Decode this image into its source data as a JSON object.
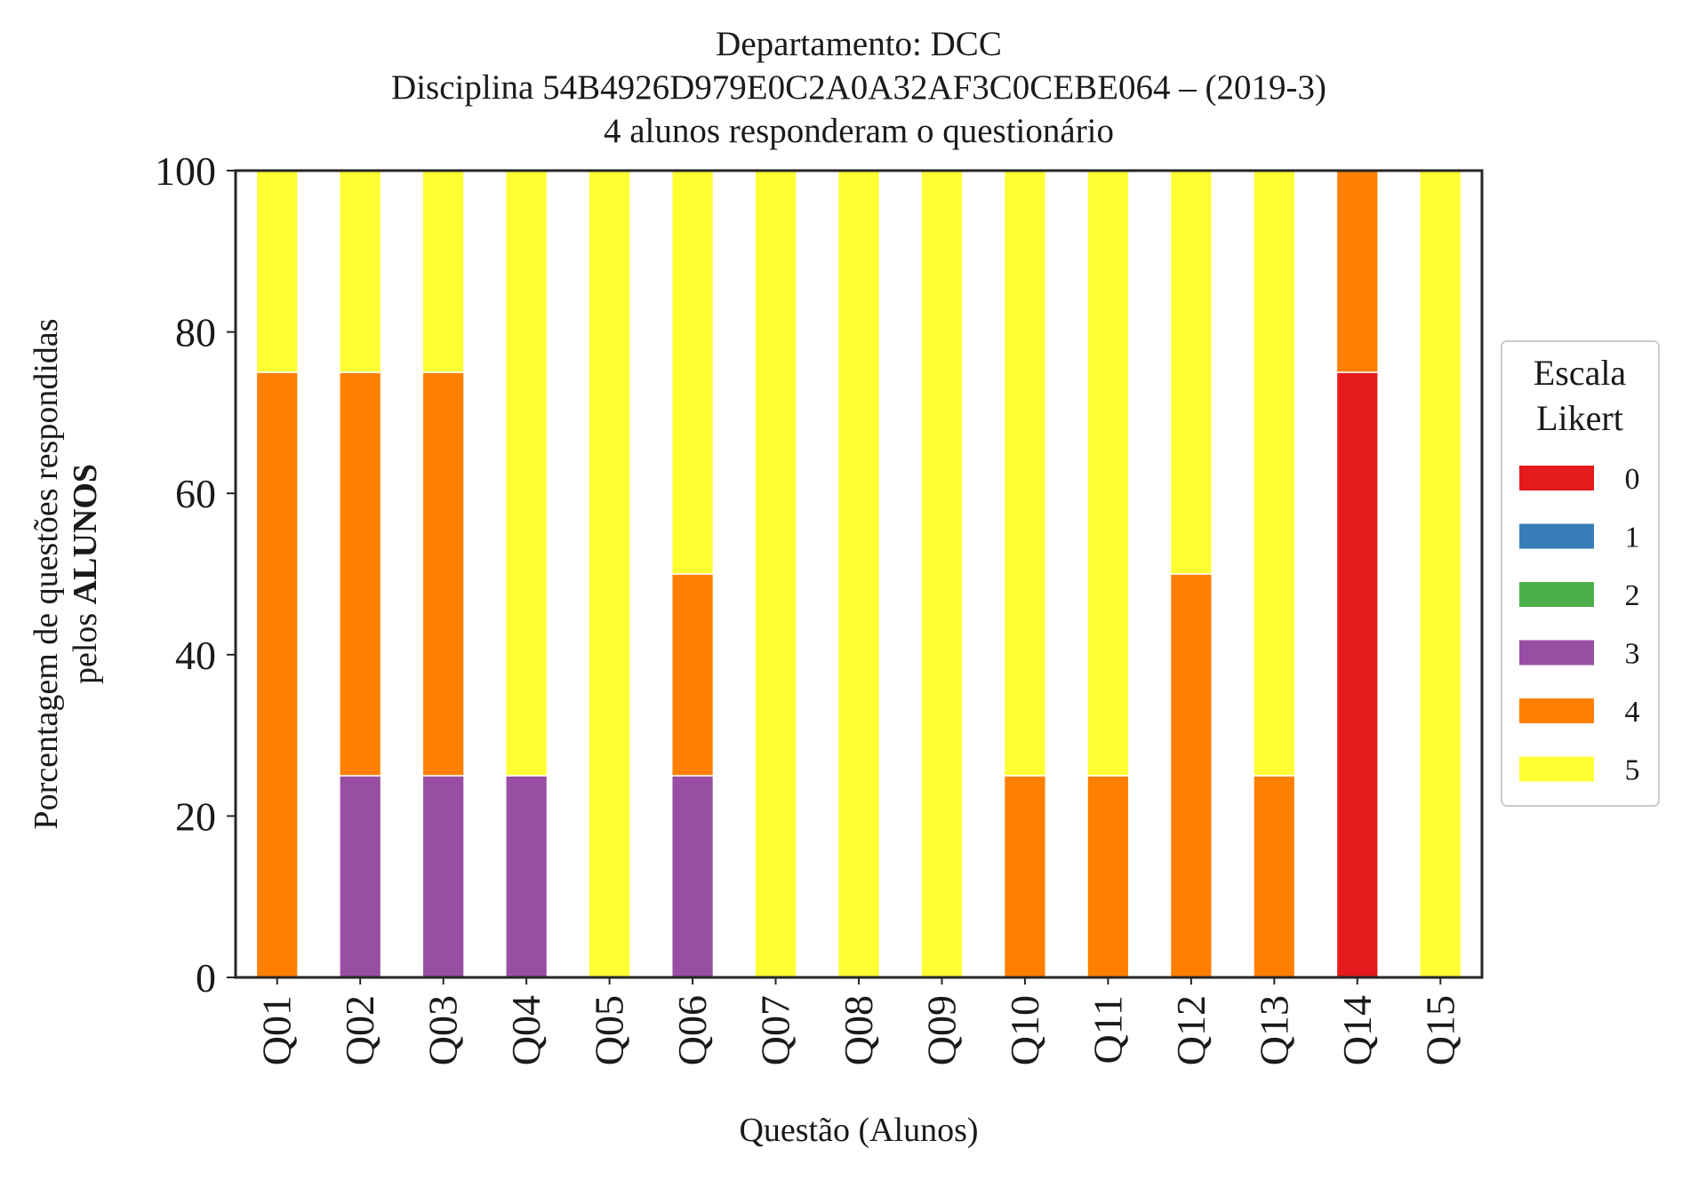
{
  "chart_data": {
    "type": "bar",
    "stacked": true,
    "title_lines": [
      "Departamento: DCC",
      "Disciplina 54B4926D979E0C2A0A32AF3C0CEBE064 – (2019-3)",
      "4 alunos responderam o questionário"
    ],
    "xlabel": "Questão (Alunos)",
    "ylabel_line1": "Porcentagem de questões respondidas",
    "ylabel_line2_prefix": "pelos ",
    "ylabel_line2_bold": "ALUNOS",
    "ylim": [
      0,
      100
    ],
    "yticks": [
      "0",
      "20",
      "40",
      "60",
      "80",
      "100"
    ],
    "grid": false,
    "legend_position": "right",
    "legend_title_lines": [
      "Escala",
      "Likert"
    ],
    "categories": [
      "Q01",
      "Q02",
      "Q03",
      "Q04",
      "Q05",
      "Q06",
      "Q07",
      "Q08",
      "Q09",
      "Q10",
      "Q11",
      "Q12",
      "Q13",
      "Q14",
      "Q15"
    ],
    "series": [
      {
        "name": "0",
        "color": "#e41a1c",
        "values": [
          0,
          0,
          0,
          0,
          0,
          0,
          0,
          0,
          0,
          0,
          0,
          0,
          0,
          75,
          0
        ]
      },
      {
        "name": "1",
        "color": "#377eb8",
        "values": [
          0,
          0,
          0,
          0,
          0,
          0,
          0,
          0,
          0,
          0,
          0,
          0,
          0,
          0,
          0
        ]
      },
      {
        "name": "2",
        "color": "#4daf4a",
        "values": [
          0,
          0,
          0,
          0,
          0,
          0,
          0,
          0,
          0,
          0,
          0,
          0,
          0,
          0,
          0
        ]
      },
      {
        "name": "3",
        "color": "#984ea3",
        "values": [
          0,
          25,
          25,
          25,
          0,
          25,
          0,
          0,
          0,
          0,
          0,
          0,
          0,
          0,
          0
        ]
      },
      {
        "name": "4",
        "color": "#ff7f00",
        "values": [
          75,
          50,
          50,
          0,
          0,
          25,
          0,
          0,
          0,
          25,
          25,
          50,
          25,
          25,
          0
        ]
      },
      {
        "name": "5",
        "color": "#ffff33",
        "values": [
          25,
          25,
          25,
          75,
          100,
          50,
          100,
          100,
          100,
          75,
          75,
          50,
          75,
          0,
          100
        ]
      }
    ]
  }
}
